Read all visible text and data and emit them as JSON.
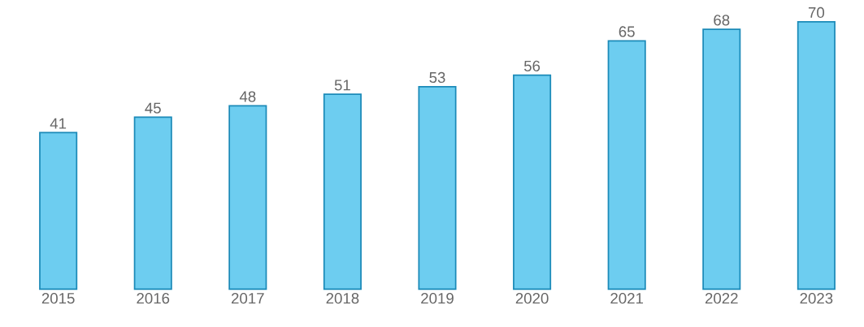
{
  "chart_data": {
    "type": "bar",
    "categories": [
      "2015",
      "2016",
      "2017",
      "2018",
      "2019",
      "2020",
      "2021",
      "2022",
      "2023"
    ],
    "values": [
      41,
      45,
      48,
      51,
      53,
      56,
      65,
      68,
      70
    ],
    "color": "#6dcdf0",
    "data_labels": true
  }
}
